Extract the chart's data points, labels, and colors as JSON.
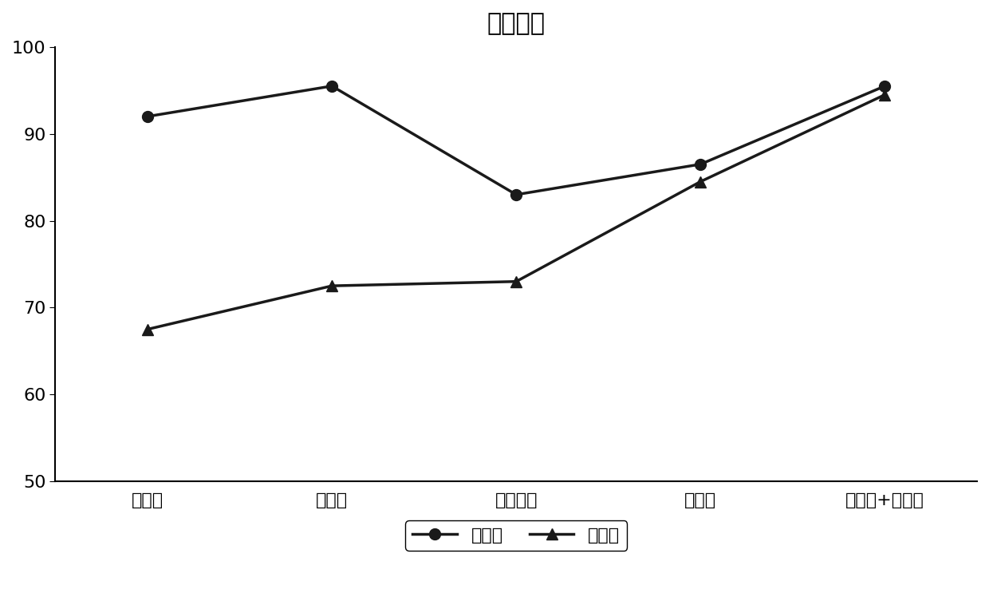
{
  "title": "北京种源",
  "categories": [
    "粗砂土",
    "细砂土",
    "中壤质土",
    "配方土",
    "细砂土+配方土"
  ],
  "series": [
    {
      "name": "生根率",
      "values": [
        92,
        95.5,
        83,
        86.5,
        95.5
      ],
      "marker": "o",
      "color": "#1a1a1a",
      "linewidth": 2.5,
      "markersize": 10
    },
    {
      "name": "成活率",
      "values": [
        67.5,
        72.5,
        73,
        84.5,
        94.5
      ],
      "marker": "^",
      "color": "#1a1a1a",
      "linewidth": 2.5,
      "markersize": 10
    }
  ],
  "ylim": [
    50,
    100
  ],
  "yticks": [
    50,
    60,
    70,
    80,
    90,
    100
  ],
  "background_color": "#ffffff",
  "title_fontsize": 22,
  "tick_fontsize": 16,
  "legend_fontsize": 16,
  "xlabel": "",
  "ylabel": ""
}
